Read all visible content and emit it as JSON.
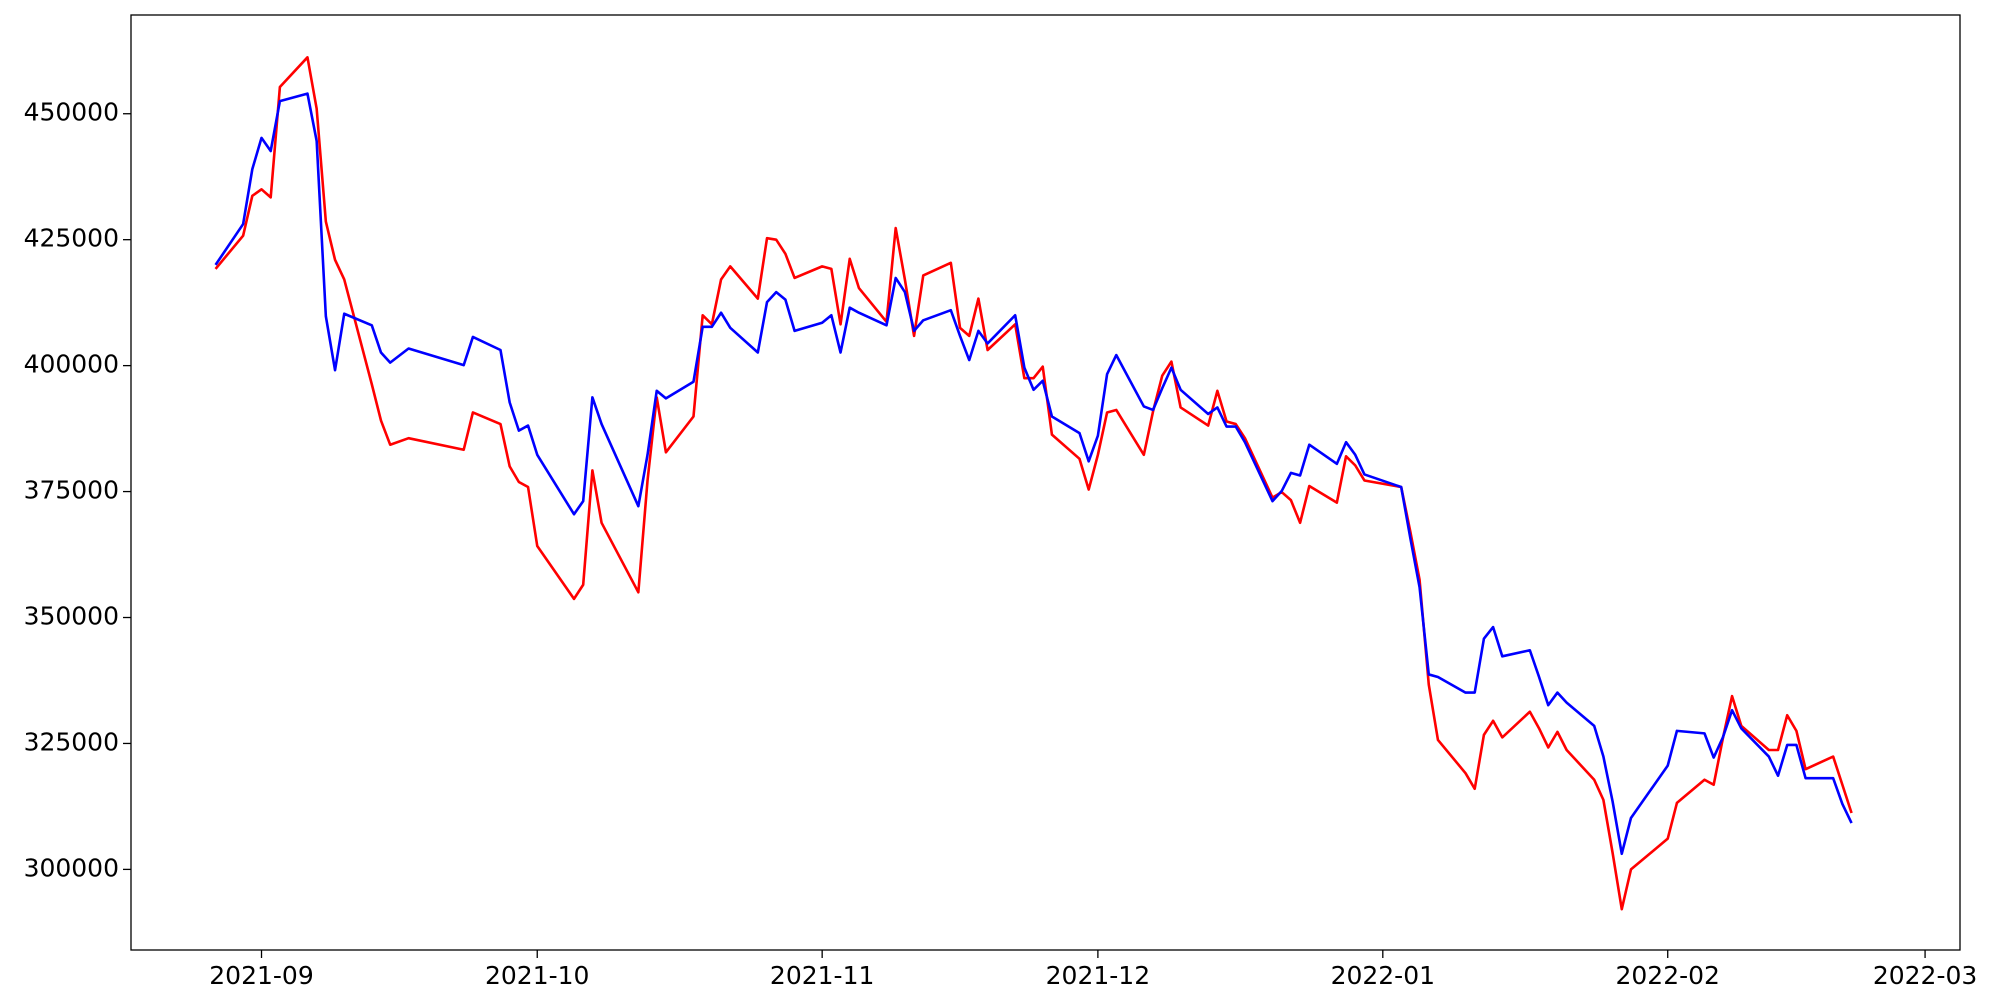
{
  "chart_data": {
    "type": "line",
    "x": [
      -5,
      -2,
      -1,
      0,
      1,
      2,
      5,
      6,
      7,
      8,
      9,
      12,
      13,
      14,
      16,
      22,
      23,
      26,
      27,
      28,
      29,
      30,
      34,
      35,
      36,
      37,
      41,
      42,
      43,
      44,
      47,
      48,
      49,
      50,
      51,
      54,
      55,
      56,
      57,
      58,
      61,
      62,
      63,
      64,
      65,
      68,
      69,
      70,
      71,
      72,
      75,
      76,
      77,
      78,
      79,
      82,
      83,
      84,
      85,
      86,
      89,
      90,
      91,
      92,
      93,
      96,
      97,
      98,
      99,
      100,
      103,
      104,
      105,
      106,
      107,
      110,
      111,
      112,
      113,
      114,
      117,
      118,
      119,
      120,
      124,
      125,
      126,
      127,
      128,
      131,
      132,
      133,
      134,
      135,
      138,
      139,
      140,
      141,
      142,
      145,
      146,
      147,
      148,
      149,
      153,
      154,
      157,
      158,
      159,
      160,
      161,
      164,
      165,
      166,
      167,
      168,
      171,
      172,
      173
    ],
    "series": [
      {
        "color": "#ff0000",
        "values": [
          419200,
          425800,
          433700,
          435000,
          433400,
          455300,
          461200,
          451000,
          428600,
          421000,
          417100,
          396300,
          389100,
          384300,
          385600,
          383300,
          390700,
          388400,
          380000,
          376900,
          375900,
          364200,
          353700,
          356500,
          379200,
          368800,
          355000,
          377200,
          393700,
          382800,
          389900,
          410000,
          408200,
          417100,
          419700,
          413300,
          425300,
          425000,
          422200,
          417400,
          419700,
          419200,
          408200,
          421200,
          415400,
          408700,
          427300,
          417100,
          405900,
          417900,
          420400,
          407500,
          405900,
          413300,
          403100,
          408200,
          397500,
          397500,
          399800,
          386300,
          381500,
          375400,
          382300,
          390700,
          391200,
          382300,
          390900,
          398000,
          400800,
          391700,
          388100,
          395000,
          388900,
          388400,
          385600,
          373800,
          374900,
          373300,
          368800,
          376100,
          372800,
          382000,
          380200,
          377200,
          375900,
          367000,
          357500,
          336700,
          325700,
          319100,
          316000,
          326700,
          329500,
          326200,
          331300,
          328000,
          324200,
          327300,
          323700,
          317800,
          313800,
          303300,
          292100,
          300000,
          306100,
          313200,
          317800,
          316800,
          326000,
          334400,
          328500,
          323700,
          323700,
          330600,
          327500,
          319900,
          322400,
          316800,
          311200
        ]
      },
      {
        "color": "#0000ff",
        "values": [
          420000,
          428100,
          439000,
          445200,
          442600,
          452500,
          454000,
          444600,
          409800,
          399100,
          410300,
          408000,
          402600,
          400600,
          403400,
          400100,
          405700,
          403100,
          392700,
          387100,
          388100,
          382300,
          370500,
          373100,
          393700,
          388400,
          372100,
          382300,
          395000,
          393500,
          396800,
          407700,
          407700,
          410500,
          407500,
          402600,
          412600,
          414600,
          413100,
          406900,
          408500,
          410000,
          402600,
          411500,
          410500,
          408000,
          417400,
          414600,
          406900,
          409000,
          411000,
          405900,
          401100,
          406900,
          404400,
          410000,
          399600,
          395200,
          397000,
          389900,
          386600,
          381000,
          386100,
          398300,
          402100,
          391900,
          391200,
          395500,
          399600,
          395200,
          390400,
          391700,
          387900,
          387900,
          384800,
          373100,
          375100,
          378700,
          378200,
          384300,
          380500,
          384800,
          382300,
          378400,
          375900,
          365700,
          356000,
          338700,
          338200,
          335100,
          335100,
          345800,
          348100,
          342300,
          343500,
          338200,
          332600,
          335100,
          333100,
          328500,
          322400,
          313500,
          303100,
          310200,
          320600,
          327500,
          327000,
          322200,
          326200,
          331600,
          328000,
          322400,
          318600,
          324700,
          324700,
          318100,
          318100,
          313000,
          309200
        ]
      }
    ],
    "xlim": [
      -14.2,
      184.8
    ],
    "xticks": [
      {
        "value": 0,
        "label": "2021-09"
      },
      {
        "value": 30,
        "label": "2021-10"
      },
      {
        "value": 61,
        "label": "2021-11"
      },
      {
        "value": 91,
        "label": "2021-12"
      },
      {
        "value": 122,
        "label": "2022-01"
      },
      {
        "value": 153,
        "label": "2022-02"
      },
      {
        "value": 181,
        "label": "2022-03"
      }
    ],
    "ylim": [
      284000,
      469600
    ],
    "yticks": [
      300000,
      325000,
      350000,
      375000,
      400000,
      425000,
      450000
    ],
    "grid": false
  }
}
